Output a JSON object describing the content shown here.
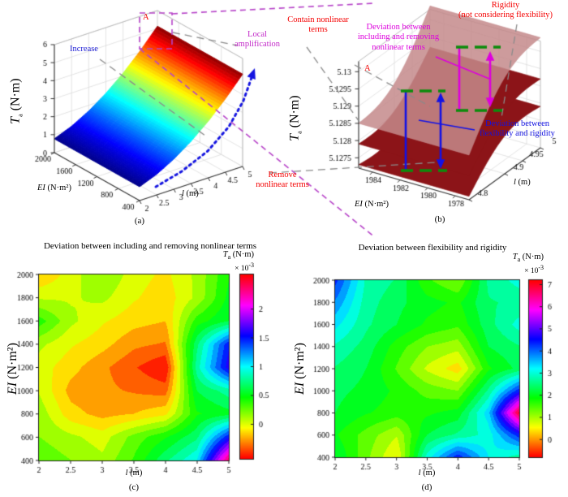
{
  "labels": {
    "ta_var": "T",
    "ta_sub": "a",
    "ta_unit": " (N·m)",
    "ei_var": "EI",
    "ei_unit": " (N·m²)",
    "l_var": "l",
    "l_unit": " (m)",
    "exp_base": "× 10",
    "exp_sup": "-3"
  },
  "panels": {
    "a": {
      "caption": "(a)"
    },
    "b": {
      "caption": "(b)"
    },
    "c": {
      "caption": "(c)",
      "title": "Deviation between including and removing  nonlinear terms"
    },
    "d": {
      "caption": "(d)",
      "title": "Deviation between flexibility and rigidity"
    }
  },
  "annotations": {
    "increase": "Increase",
    "local_amplification": "Local\namplification",
    "marker_a": "A",
    "remove_nonlinear": "Remove\nnonlinear terms",
    "contain_nonlinear": "Contain nonlinear\nterms",
    "rigidity": "Rigidity\n(not considering flexibility)",
    "deviation_nonlinear": "Deviation between\nincluding and removing\nnonlinear terms",
    "deviation_flexibility": "Deviation between\nflexibility and rigidity",
    "marker_a_b": "A"
  },
  "colors": {
    "red": "#f40000",
    "magenta_dashed": "#b643c8",
    "magenta_arrow": "#dd00dd",
    "blue_arrow": "#1212e6",
    "blue_dotted": "#1414e0",
    "green_bracket": "#0c8c0c",
    "gray_dashed": "#8a8a8a",
    "pink_surface": "#c4898b",
    "dark_red_surface": "#8c1418",
    "axis": "#333333",
    "grid": "#dcdcdc"
  },
  "chart_data": [
    {
      "id": "a",
      "type": "surface",
      "xlabel": "l (m)",
      "ylabel": "EI (N·m²)",
      "zlabel": "Ta (N·m)",
      "l": [
        2,
        2.5,
        3,
        3.5,
        4,
        4.5,
        5
      ],
      "EI": [
        400,
        600,
        800,
        1000,
        1200,
        1400,
        1600,
        1800,
        2000
      ],
      "Ta_profile": [
        0.77,
        1.15,
        1.68,
        2.35,
        3.15,
        4.08,
        5.13
      ],
      "zlim": [
        0,
        6
      ],
      "zticks": [
        0,
        1,
        2,
        3,
        4,
        5,
        6
      ],
      "ei_ticks": [
        2000,
        1600,
        1200,
        800,
        400
      ],
      "l_ticks": [
        2,
        2.5,
        3,
        3.5,
        4,
        4.5,
        5
      ],
      "colormap": "jet"
    },
    {
      "id": "b",
      "type": "surface",
      "xlabel": "l (m)",
      "ylabel": "EI (N·m²)",
      "zlabel": "Ta (N·m)",
      "llim": [
        4.8,
        5
      ],
      "EIlim": [
        1977,
        1985
      ],
      "zlim": [
        5.1272,
        5.1303
      ],
      "zticks": [
        5.1275,
        5.128,
        5.1285,
        5.129,
        5.1295,
        5.13
      ],
      "ei_ticks": [
        1984,
        1982,
        1980,
        1978
      ],
      "l_ticks": [
        4.8,
        4.9,
        4.95,
        5
      ],
      "series": [
        {
          "name": "Contain nonlinear terms",
          "Ta_at_l_4_8": 5.1285,
          "Ta_at_l_5": 5.1304
        },
        {
          "name": "Remove nonlinear terms",
          "Ta_at_l_4_8": 5.1279,
          "Ta_at_l_5": 5.1292
        },
        {
          "name": "Rigidity (not considering flexibility)",
          "Ta_at_l_4_8": 5.1273,
          "Ta_at_l_5": 5.1284
        }
      ]
    },
    {
      "id": "c",
      "type": "heatmap",
      "title": "Deviation between including and removing  nonlinear terms",
      "xlabel": "l (m)",
      "ylabel": "EI (N·m²)",
      "cbar_label": "Ta (N·m) × 10^-3",
      "x": [
        2,
        2.5,
        3,
        3.5,
        4,
        4.5,
        5
      ],
      "y": [
        2000,
        1800,
        1600,
        1400,
        1200,
        1000,
        800,
        600,
        400
      ],
      "values": [
        [
          -0.2,
          0.0,
          0.2,
          0.0,
          -0.1,
          0.1,
          0.45
        ],
        [
          0.05,
          0.05,
          0.1,
          -0.05,
          -0.15,
          0.1,
          0.5
        ],
        [
          0.4,
          0.1,
          -0.05,
          -0.15,
          -0.2,
          0.4,
          0.6
        ],
        [
          0.1,
          -0.05,
          -0.15,
          -0.3,
          -0.35,
          0.7,
          1.5
        ],
        [
          0.0,
          -0.15,
          -0.3,
          -0.45,
          -0.6,
          0.8,
          1.6
        ],
        [
          0.05,
          -0.25,
          -0.3,
          -0.35,
          -0.4,
          0.6,
          0.8
        ],
        [
          0.15,
          -0.15,
          -0.25,
          -0.2,
          -0.1,
          0.45,
          0.55
        ],
        [
          0.2,
          0.1,
          0.0,
          0.25,
          0.45,
          0.7,
          1.5
        ],
        [
          0.3,
          0.2,
          0.1,
          0.35,
          0.7,
          1.0,
          2.4
        ]
      ],
      "clim": [
        -0.6,
        2.6
      ],
      "cbar_ticks": [
        2,
        1.5,
        1,
        0.5,
        0
      ],
      "colormap": "hsv"
    },
    {
      "id": "d",
      "type": "heatmap",
      "title": "Deviation between flexibility and rigidity",
      "xlabel": "l (m)",
      "ylabel": "EI (N·m²)",
      "cbar_label": "Ta (N·m) × 10^-3",
      "x": [
        2,
        2.5,
        3,
        3.5,
        4,
        4.5,
        5
      ],
      "y": [
        2000,
        1800,
        1600,
        1400,
        1200,
        1000,
        800,
        600,
        400
      ],
      "values": [
        [
          4.3,
          2.8,
          2.5,
          1.6,
          1.2,
          2.6,
          3.0
        ],
        [
          3.8,
          2.7,
          2.3,
          2.0,
          1.8,
          2.5,
          2.6
        ],
        [
          3.3,
          2.6,
          2.2,
          1.8,
          1.6,
          2.4,
          3.0
        ],
        [
          2.8,
          2.4,
          1.7,
          1.2,
          1.0,
          2.2,
          2.5
        ],
        [
          2.5,
          2.2,
          1.5,
          0.8,
          0.35,
          1.8,
          2.3
        ],
        [
          2.3,
          2.1,
          1.8,
          1.4,
          1.2,
          2.6,
          4.4
        ],
        [
          2.2,
          1.9,
          1.7,
          1.8,
          2.0,
          3.4,
          7.0
        ],
        [
          1.9,
          1.4,
          0.9,
          2.2,
          2.6,
          3.0,
          4.4
        ],
        [
          2.2,
          1.3,
          0.5,
          3.0,
          4.4,
          3.2,
          2.7
        ]
      ],
      "clim": [
        -0.8,
        7.2
      ],
      "cbar_ticks": [
        7,
        6,
        5,
        4,
        3,
        2,
        1,
        0
      ],
      "colormap": "hsv"
    }
  ]
}
